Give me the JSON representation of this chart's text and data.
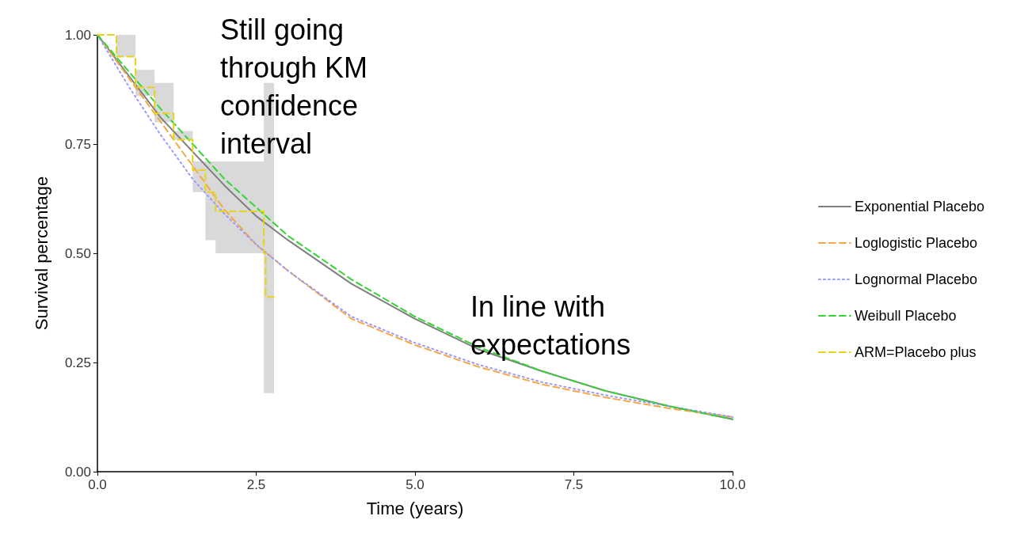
{
  "chart_data": {
    "type": "line",
    "xlabel": "Time (years)",
    "ylabel": "Survival percentage",
    "xlim": [
      0,
      10
    ],
    "xticks": [
      {
        "value": 0,
        "label": "0.0"
      },
      {
        "value": 2.5,
        "label": "2.5"
      },
      {
        "value": 5,
        "label": "5.0"
      },
      {
        "value": 7.5,
        "label": "7.5"
      },
      {
        "value": 10,
        "label": "10.0"
      }
    ],
    "ylim": [
      0,
      1
    ],
    "yticks": [
      {
        "value": 0,
        "label": "0.00"
      },
      {
        "value": 0.25,
        "label": "0.25"
      },
      {
        "value": 0.5,
        "label": "0.50"
      },
      {
        "value": 0.75,
        "label": "0.75"
      },
      {
        "value": 1,
        "label": "1.00"
      }
    ],
    "grid": false,
    "legend": "right",
    "marker": "none",
    "annotations": [
      "Still going through KM confidence interval",
      "In line with expectations"
    ],
    "series": [
      {
        "name": "Exponential Placebo",
        "color": "#7f7f7f",
        "line_style": "solid",
        "x": [
          0,
          1,
          2,
          2.5,
          3,
          4,
          5,
          6,
          7,
          8,
          9,
          10
        ],
        "values": [
          1,
          0.81,
          0.655,
          0.585,
          0.53,
          0.43,
          0.35,
          0.28,
          0.23,
          0.185,
          0.15,
          0.12
        ]
      },
      {
        "name": "Loglogistic Placebo",
        "color": "#f5a84a",
        "line_style": "dashed",
        "x": [
          0,
          0.5,
          1,
          1.5,
          2,
          2.5,
          3,
          4,
          5,
          6,
          7,
          8,
          9,
          10
        ],
        "values": [
          1,
          0.9,
          0.8,
          0.7,
          0.6,
          0.52,
          0.46,
          0.35,
          0.29,
          0.24,
          0.2,
          0.17,
          0.145,
          0.125
        ]
      },
      {
        "name": "Lognormal Placebo",
        "color": "#9a9aff",
        "line_style": "dotted",
        "x": [
          0,
          0.5,
          1,
          1.5,
          2,
          2.5,
          3,
          4,
          5,
          6,
          7,
          8,
          9,
          10
        ],
        "values": [
          1,
          0.88,
          0.77,
          0.67,
          0.59,
          0.52,
          0.46,
          0.355,
          0.295,
          0.245,
          0.205,
          0.175,
          0.15,
          0.125
        ]
      },
      {
        "name": "Weibull Placebo",
        "color": "#33d633",
        "line_style": "dashed",
        "x": [
          0,
          1,
          2,
          3,
          4,
          5,
          6,
          7,
          8,
          9,
          10
        ],
        "values": [
          1,
          0.83,
          0.67,
          0.54,
          0.44,
          0.355,
          0.285,
          0.23,
          0.185,
          0.15,
          0.12
        ]
      },
      {
        "name": "ARM=Placebo plus",
        "type": "step",
        "color": "#e8d21a",
        "line_style": "dashed",
        "x": [
          0,
          0.3,
          0.6,
          0.9,
          1.2,
          1.5,
          1.7,
          1.86,
          2.62,
          2.65,
          2.78
        ],
        "values": [
          1,
          0.95,
          0.88,
          0.82,
          0.76,
          0.69,
          0.64,
          0.596,
          0.5,
          0.4,
          0.4
        ],
        "lower": [
          1,
          0.95,
          0.86,
          0.8,
          0.76,
          0.64,
          0.53,
          0.5,
          0.18,
          0.18,
          0.18
        ],
        "upper": [
          1,
          1,
          0.92,
          0.89,
          0.78,
          0.71,
          0.71,
          0.71,
          0.89,
          0.89,
          0.89
        ]
      }
    ]
  }
}
